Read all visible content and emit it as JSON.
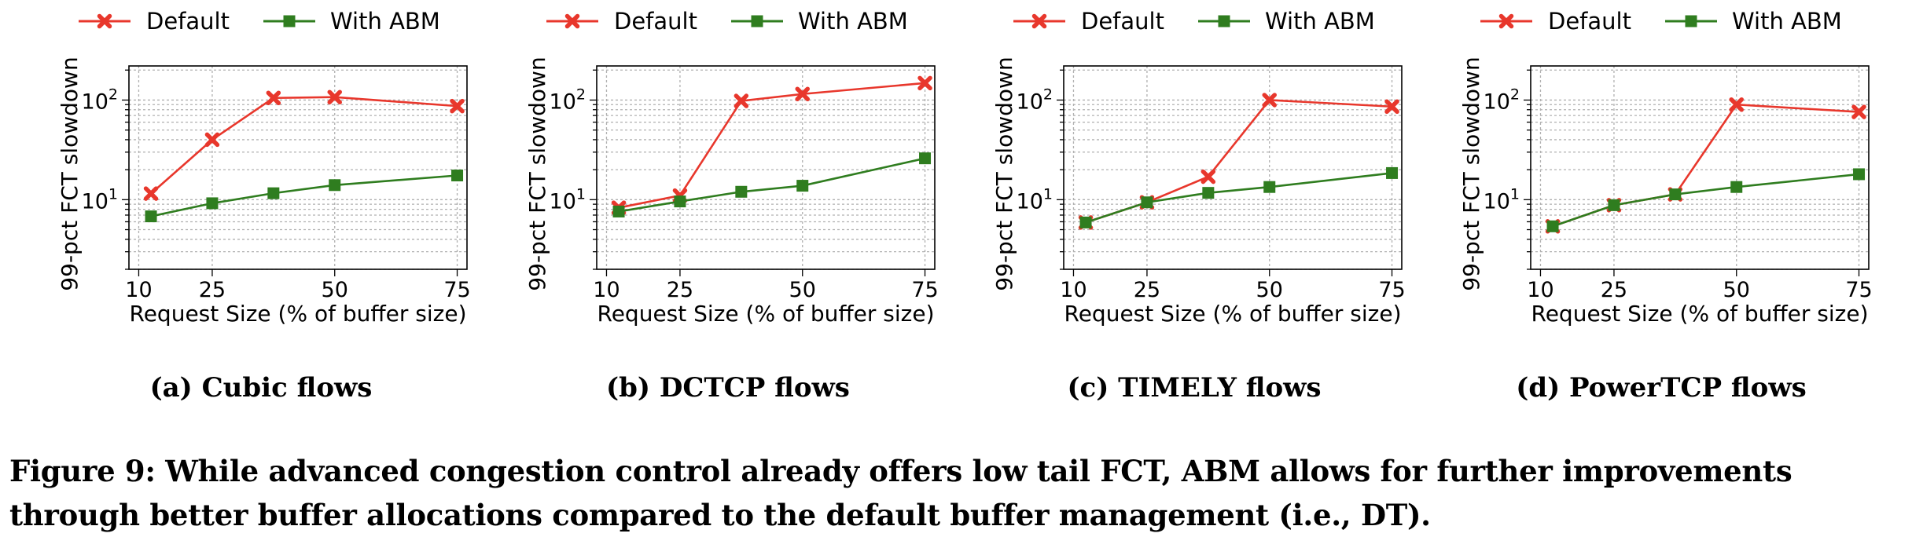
{
  "figure": {
    "caption": "Figure 9: While advanced congestion control already offers low tail FCT, ABM allows for further improvements through better buffer allocations compared to the default buffer management (i.e., DT)."
  },
  "colors": {
    "default": "#e8372c",
    "abm": "#2f7d1f",
    "grid": "#b0b0b0"
  },
  "chart_data": [
    {
      "type": "line",
      "subcaption": "(a) Cubic flows",
      "xlabel": "Request Size (% of buffer size)",
      "ylabel": "99-pct FCT slowdown",
      "x_ticks": [
        "10",
        "25",
        "50",
        "75"
      ],
      "y_ticks": [
        "10^1",
        "10^2"
      ],
      "xlim": [
        8,
        77
      ],
      "ylim": [
        2,
        220
      ],
      "yscale": "log",
      "grid": true,
      "legend": "top",
      "x": [
        12.5,
        25,
        37.5,
        50,
        75
      ],
      "series": [
        {
          "name": "Default",
          "marker": "x",
          "values": [
            11.5,
            40,
            105,
            107,
            87
          ]
        },
        {
          "name": "With ABM",
          "marker": "square",
          "values": [
            6.8,
            9.2,
            11.6,
            14,
            17.5
          ]
        }
      ]
    },
    {
      "type": "line",
      "subcaption": "(b) DCTCP flows",
      "xlabel": "Request Size (% of buffer size)",
      "ylabel": "99-pct FCT slowdown",
      "x_ticks": [
        "10",
        "25",
        "50",
        "75"
      ],
      "y_ticks": [
        "10^1",
        "10^2"
      ],
      "xlim": [
        8,
        77
      ],
      "ylim": [
        2,
        220
      ],
      "yscale": "log",
      "grid": true,
      "legend": "top",
      "x": [
        12.5,
        25,
        37.5,
        50,
        75
      ],
      "series": [
        {
          "name": "Default",
          "marker": "x",
          "values": [
            8.3,
            11,
            98,
            115,
            148
          ]
        },
        {
          "name": "With ABM",
          "marker": "square",
          "values": [
            7.6,
            9.6,
            12,
            13.8,
            26
          ]
        }
      ]
    },
    {
      "type": "line",
      "subcaption": "(c) TIMELY flows",
      "xlabel": "Request Size (% of buffer size)",
      "ylabel": "99-pct FCT slowdown",
      "x_ticks": [
        "10",
        "25",
        "50",
        "75"
      ],
      "y_ticks": [
        "10^1",
        "10^2"
      ],
      "xlim": [
        8,
        77
      ],
      "ylim": [
        2,
        220
      ],
      "yscale": "log",
      "grid": true,
      "legend": "top",
      "x": [
        12.5,
        25,
        37.5,
        50,
        75
      ],
      "series": [
        {
          "name": "Default",
          "marker": "x",
          "values": [
            5.9,
            9.4,
            17,
            100,
            86
          ]
        },
        {
          "name": "With ABM",
          "marker": "square",
          "values": [
            5.9,
            9.4,
            11.7,
            13.4,
            18.5
          ]
        }
      ]
    },
    {
      "type": "line",
      "subcaption": "(d) PowerTCP flows",
      "xlabel": "Request Size (% of buffer size)",
      "ylabel": "99-pct FCT slowdown",
      "x_ticks": [
        "10",
        "25",
        "50",
        "75"
      ],
      "y_ticks": [
        "10^1",
        "10^2"
      ],
      "xlim": [
        8,
        77
      ],
      "ylim": [
        2,
        220
      ],
      "yscale": "log",
      "grid": true,
      "legend": "top",
      "x": [
        12.5,
        25,
        37.5,
        50,
        75
      ],
      "series": [
        {
          "name": "Default",
          "marker": "x",
          "values": [
            5.4,
            8.8,
            11.3,
            90,
            76
          ]
        },
        {
          "name": "With ABM",
          "marker": "square",
          "values": [
            5.4,
            8.8,
            11.3,
            13.4,
            18
          ]
        }
      ]
    }
  ]
}
